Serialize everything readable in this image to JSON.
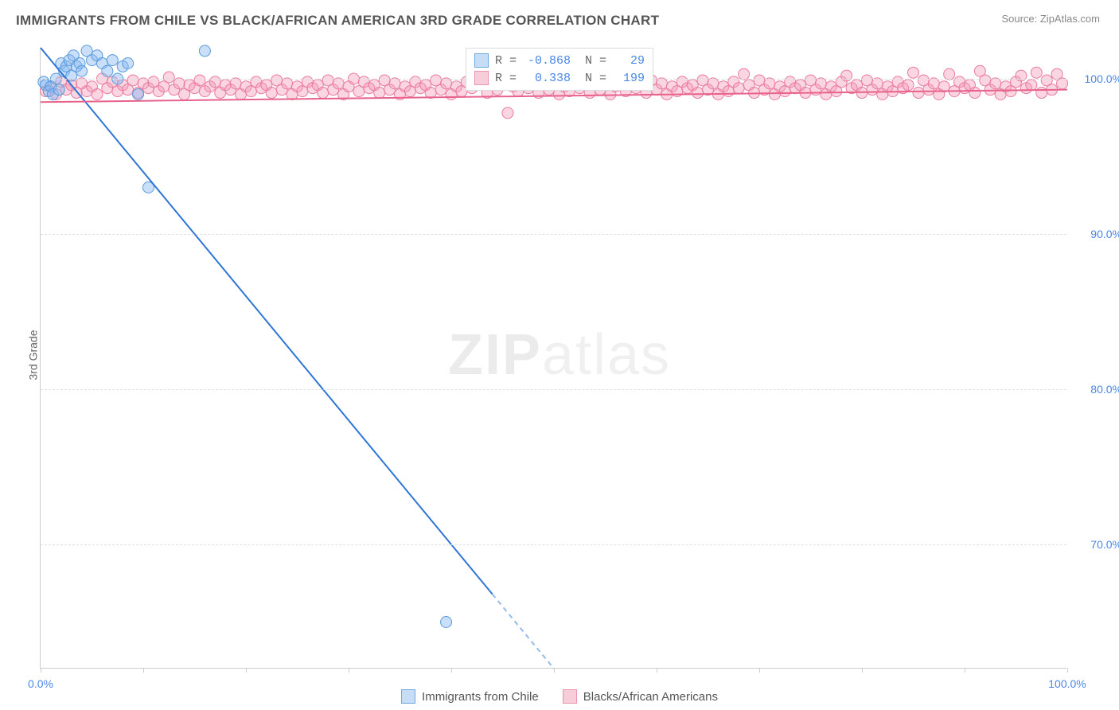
{
  "title": "IMMIGRANTS FROM CHILE VS BLACK/AFRICAN AMERICAN 3RD GRADE CORRELATION CHART",
  "source_prefix": "Source: ",
  "source_link": "ZipAtlas.com",
  "y_axis_label": "3rd Grade",
  "watermark_bold": "ZIP",
  "watermark_light": "atlas",
  "chart": {
    "type": "scatter",
    "xlim": [
      0,
      100
    ],
    "ylim": [
      62,
      102
    ],
    "x_ticks_major": [
      0,
      100
    ],
    "x_ticks_minor": [
      10,
      20,
      30,
      40,
      50,
      60,
      70,
      80,
      90
    ],
    "x_tick_labels": {
      "0": "0.0%",
      "100": "100.0%"
    },
    "y_ticks": [
      70,
      80,
      90,
      100
    ],
    "y_tick_labels": {
      "70": "70.0%",
      "80": "80.0%",
      "90": "90.0%",
      "100": "100.0%"
    },
    "background_color": "#ffffff",
    "grid_color": "#e0e0e0",
    "axis_color": "#cccccc",
    "tick_label_color": "#4a86e8",
    "series": [
      {
        "name": "Immigrants from Chile",
        "color_fill": "rgba(135,185,245,0.45)",
        "color_stroke": "#5a9bd8",
        "swatch_fill": "#c7ddf5",
        "swatch_border": "#6fa8e0",
        "marker_radius": 7,
        "R": "-0.868",
        "N": "29",
        "trend": {
          "x1": 0,
          "y1": 102,
          "x2": 50,
          "y2": 62,
          "color": "#2e75d6",
          "width": 2,
          "dash_from_x": 44
        },
        "points": [
          [
            0.3,
            99.8
          ],
          [
            0.5,
            99.6
          ],
          [
            0.8,
            99.2
          ],
          [
            1.0,
            99.5
          ],
          [
            1.2,
            99.0
          ],
          [
            1.5,
            100.0
          ],
          [
            1.8,
            99.3
          ],
          [
            2.0,
            101.0
          ],
          [
            2.3,
            100.5
          ],
          [
            2.5,
            100.8
          ],
          [
            2.8,
            101.2
          ],
          [
            3.0,
            100.2
          ],
          [
            3.2,
            101.5
          ],
          [
            3.5,
            100.8
          ],
          [
            3.8,
            101.0
          ],
          [
            4.0,
            100.5
          ],
          [
            4.5,
            101.8
          ],
          [
            5.0,
            101.2
          ],
          [
            5.5,
            101.5
          ],
          [
            6.0,
            101.0
          ],
          [
            6.5,
            100.5
          ],
          [
            7.0,
            101.2
          ],
          [
            7.5,
            100.0
          ],
          [
            8.0,
            100.8
          ],
          [
            8.5,
            101.0
          ],
          [
            9.5,
            99.0
          ],
          [
            10.5,
            93.0
          ],
          [
            16.0,
            101.8
          ],
          [
            39.5,
            65.0
          ]
        ]
      },
      {
        "name": "Blacks/African Americans",
        "color_fill": "rgba(245,150,180,0.4)",
        "color_stroke": "#e87ca0",
        "swatch_fill": "#f7cdd9",
        "swatch_border": "#e994b0",
        "marker_radius": 7,
        "R": "0.338",
        "N": "199",
        "trend": {
          "x1": 0,
          "y1": 98.5,
          "x2": 100,
          "y2": 99.3,
          "color": "#e8638c",
          "width": 2
        },
        "points": [
          [
            0.5,
            99.2
          ],
          [
            1.0,
            99.5
          ],
          [
            1.5,
            99.0
          ],
          [
            2.0,
            99.8
          ],
          [
            2.5,
            99.3
          ],
          [
            3.0,
            99.6
          ],
          [
            3.5,
            99.1
          ],
          [
            4.0,
            99.7
          ],
          [
            4.5,
            99.2
          ],
          [
            5.0,
            99.5
          ],
          [
            5.5,
            99.0
          ],
          [
            6.0,
            100.0
          ],
          [
            6.5,
            99.4
          ],
          [
            7.0,
            99.8
          ],
          [
            7.5,
            99.2
          ],
          [
            8.0,
            99.6
          ],
          [
            8.5,
            99.3
          ],
          [
            9.0,
            99.9
          ],
          [
            9.5,
            99.1
          ],
          [
            10.0,
            99.7
          ],
          [
            10.5,
            99.4
          ],
          [
            11.0,
            99.8
          ],
          [
            11.5,
            99.2
          ],
          [
            12.0,
            99.5
          ],
          [
            12.5,
            100.1
          ],
          [
            13.0,
            99.3
          ],
          [
            13.5,
            99.7
          ],
          [
            14.0,
            99.0
          ],
          [
            14.5,
            99.6
          ],
          [
            15.0,
            99.4
          ],
          [
            15.5,
            99.9
          ],
          [
            16.0,
            99.2
          ],
          [
            16.5,
            99.5
          ],
          [
            17.0,
            99.8
          ],
          [
            17.5,
            99.1
          ],
          [
            18.0,
            99.6
          ],
          [
            18.5,
            99.3
          ],
          [
            19.0,
            99.7
          ],
          [
            19.5,
            99.0
          ],
          [
            20.0,
            99.5
          ],
          [
            20.5,
            99.2
          ],
          [
            21.0,
            99.8
          ],
          [
            21.5,
            99.4
          ],
          [
            22.0,
            99.6
          ],
          [
            22.5,
            99.1
          ],
          [
            23.0,
            99.9
          ],
          [
            23.5,
            99.3
          ],
          [
            24.0,
            99.7
          ],
          [
            24.5,
            99.0
          ],
          [
            25.0,
            99.5
          ],
          [
            25.5,
            99.2
          ],
          [
            26.0,
            99.8
          ],
          [
            26.5,
            99.4
          ],
          [
            27.0,
            99.6
          ],
          [
            27.5,
            99.1
          ],
          [
            28.0,
            99.9
          ],
          [
            28.5,
            99.3
          ],
          [
            29.0,
            99.7
          ],
          [
            29.5,
            99.0
          ],
          [
            30.0,
            99.5
          ],
          [
            30.5,
            100.0
          ],
          [
            31.0,
            99.2
          ],
          [
            31.5,
            99.8
          ],
          [
            32.0,
            99.4
          ],
          [
            32.5,
            99.6
          ],
          [
            33.0,
            99.1
          ],
          [
            33.5,
            99.9
          ],
          [
            34.0,
            99.3
          ],
          [
            34.5,
            99.7
          ],
          [
            35.0,
            99.0
          ],
          [
            35.5,
            99.5
          ],
          [
            36.0,
            99.2
          ],
          [
            36.5,
            99.8
          ],
          [
            37.0,
            99.4
          ],
          [
            37.5,
            99.6
          ],
          [
            38.0,
            99.1
          ],
          [
            38.5,
            99.9
          ],
          [
            39.0,
            99.3
          ],
          [
            39.5,
            99.7
          ],
          [
            40.0,
            99.0
          ],
          [
            40.5,
            99.5
          ],
          [
            41.0,
            99.2
          ],
          [
            41.5,
            99.8
          ],
          [
            42.0,
            99.4
          ],
          [
            42.5,
            99.6
          ],
          [
            43.0,
            100.2
          ],
          [
            43.5,
            99.1
          ],
          [
            44.0,
            99.9
          ],
          [
            44.5,
            99.3
          ],
          [
            45.0,
            99.7
          ],
          [
            45.5,
            97.8
          ],
          [
            46.0,
            99.5
          ],
          [
            46.5,
            99.2
          ],
          [
            47.0,
            99.8
          ],
          [
            47.5,
            99.4
          ],
          [
            48.0,
            99.6
          ],
          [
            48.5,
            99.1
          ],
          [
            49.0,
            99.9
          ],
          [
            49.5,
            99.3
          ],
          [
            50.0,
            99.7
          ],
          [
            50.5,
            99.0
          ],
          [
            51.0,
            99.5
          ],
          [
            51.5,
            99.2
          ],
          [
            52.0,
            99.8
          ],
          [
            52.5,
            99.4
          ],
          [
            53.0,
            99.6
          ],
          [
            53.5,
            99.1
          ],
          [
            54.0,
            99.9
          ],
          [
            54.5,
            99.3
          ],
          [
            55.0,
            99.7
          ],
          [
            55.5,
            99.0
          ],
          [
            56.0,
            99.5
          ],
          [
            56.5,
            100.1
          ],
          [
            57.0,
            99.2
          ],
          [
            57.5,
            99.8
          ],
          [
            58.0,
            99.4
          ],
          [
            58.5,
            99.6
          ],
          [
            59.0,
            99.1
          ],
          [
            59.5,
            99.9
          ],
          [
            60.0,
            99.3
          ],
          [
            60.5,
            99.7
          ],
          [
            61.0,
            99.0
          ],
          [
            61.5,
            99.5
          ],
          [
            62.0,
            99.2
          ],
          [
            62.5,
            99.8
          ],
          [
            63.0,
            99.4
          ],
          [
            63.5,
            99.6
          ],
          [
            64.0,
            99.1
          ],
          [
            64.5,
            99.9
          ],
          [
            65.0,
            99.3
          ],
          [
            65.5,
            99.7
          ],
          [
            66.0,
            99.0
          ],
          [
            66.5,
            99.5
          ],
          [
            67.0,
            99.2
          ],
          [
            67.5,
            99.8
          ],
          [
            68.0,
            99.4
          ],
          [
            68.5,
            100.3
          ],
          [
            69.0,
            99.6
          ],
          [
            69.5,
            99.1
          ],
          [
            70.0,
            99.9
          ],
          [
            70.5,
            99.3
          ],
          [
            71.0,
            99.7
          ],
          [
            71.5,
            99.0
          ],
          [
            72.0,
            99.5
          ],
          [
            72.5,
            99.2
          ],
          [
            73.0,
            99.8
          ],
          [
            73.5,
            99.4
          ],
          [
            74.0,
            99.6
          ],
          [
            74.5,
            99.1
          ],
          [
            75.0,
            99.9
          ],
          [
            75.5,
            99.3
          ],
          [
            76.0,
            99.7
          ],
          [
            76.5,
            99.0
          ],
          [
            77.0,
            99.5
          ],
          [
            77.5,
            99.2
          ],
          [
            78.0,
            99.8
          ],
          [
            78.5,
            100.2
          ],
          [
            79.0,
            99.4
          ],
          [
            79.5,
            99.6
          ],
          [
            80.0,
            99.1
          ],
          [
            80.5,
            99.9
          ],
          [
            81.0,
            99.3
          ],
          [
            81.5,
            99.7
          ],
          [
            82.0,
            99.0
          ],
          [
            82.5,
            99.5
          ],
          [
            83.0,
            99.2
          ],
          [
            83.5,
            99.8
          ],
          [
            84.0,
            99.4
          ],
          [
            84.5,
            99.6
          ],
          [
            85.0,
            100.4
          ],
          [
            85.5,
            99.1
          ],
          [
            86.0,
            99.9
          ],
          [
            86.5,
            99.3
          ],
          [
            87.0,
            99.7
          ],
          [
            87.5,
            99.0
          ],
          [
            88.0,
            99.5
          ],
          [
            88.5,
            100.3
          ],
          [
            89.0,
            99.2
          ],
          [
            89.5,
            99.8
          ],
          [
            90.0,
            99.4
          ],
          [
            90.5,
            99.6
          ],
          [
            91.0,
            99.1
          ],
          [
            91.5,
            100.5
          ],
          [
            92.0,
            99.9
          ],
          [
            92.5,
            99.3
          ],
          [
            93.0,
            99.7
          ],
          [
            93.5,
            99.0
          ],
          [
            94.0,
            99.5
          ],
          [
            94.5,
            99.2
          ],
          [
            95.0,
            99.8
          ],
          [
            95.5,
            100.2
          ],
          [
            96.0,
            99.4
          ],
          [
            96.5,
            99.6
          ],
          [
            97.0,
            100.4
          ],
          [
            97.5,
            99.1
          ],
          [
            98.0,
            99.9
          ],
          [
            98.5,
            99.3
          ],
          [
            99.0,
            100.3
          ],
          [
            99.5,
            99.7
          ]
        ]
      }
    ]
  },
  "legend_top": {
    "r_label": "R =",
    "n_label": "N ="
  },
  "legend_bottom": {
    "items": [
      "Immigrants from Chile",
      "Blacks/African Americans"
    ]
  }
}
